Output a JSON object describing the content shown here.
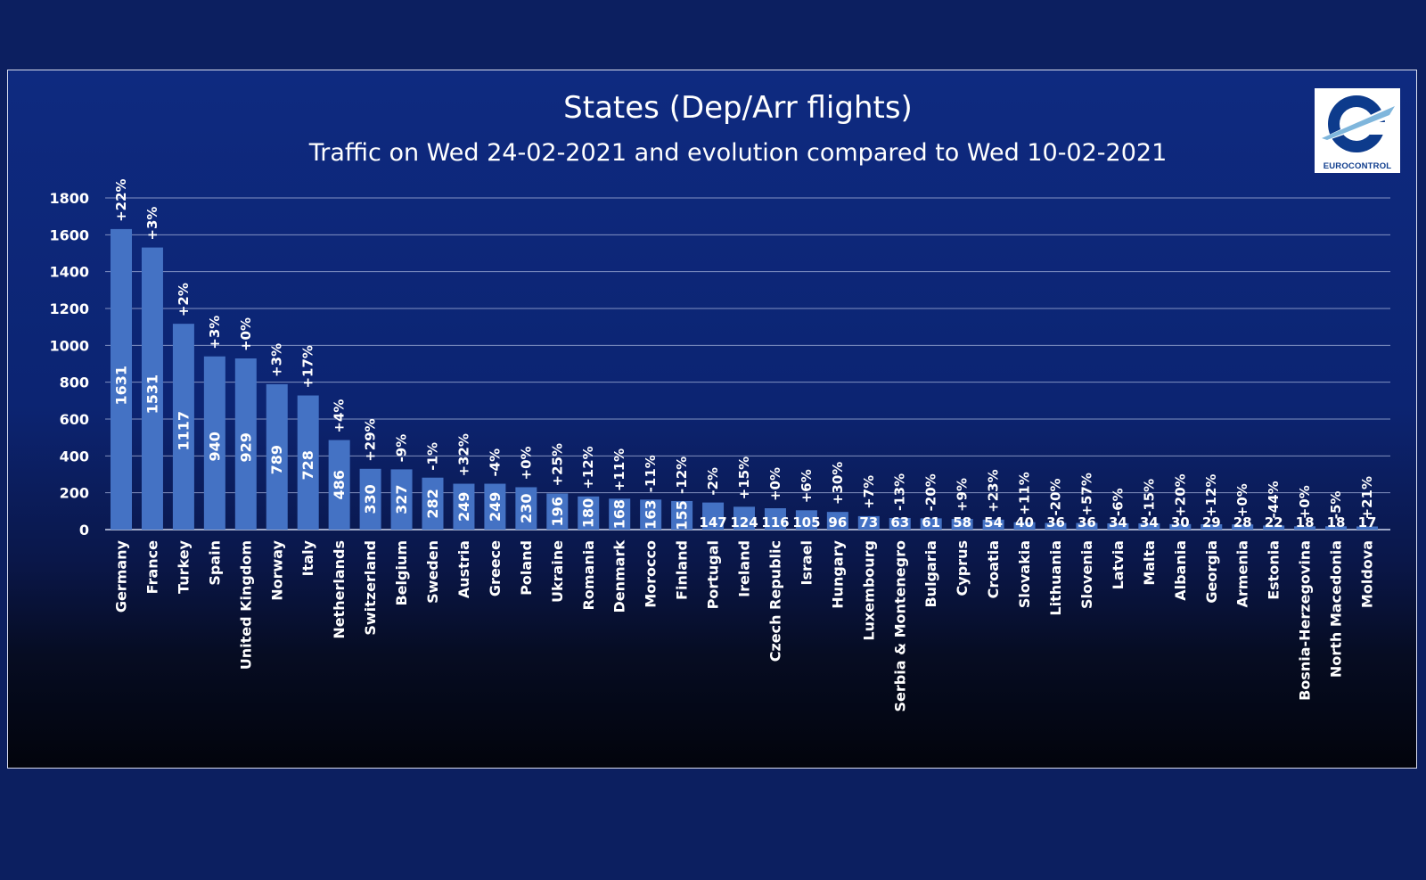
{
  "chart_data": {
    "type": "bar",
    "title": "States (Dep/Arr flights)",
    "subtitle": "Traffic on Wed 24-02-2021 and evolution compared to Wed 10-02-2021",
    "ylim": [
      0,
      1800
    ],
    "yticks": [
      0,
      200,
      400,
      600,
      800,
      1000,
      1200,
      1400,
      1600,
      1800
    ],
    "grid": true,
    "categories": [
      "Germany",
      "France",
      "Turkey",
      "Spain",
      "United Kingdom",
      "Norway",
      "Italy",
      "Netherlands",
      "Switzerland",
      "Belgium",
      "Sweden",
      "Austria",
      "Greece",
      "Poland",
      "Ukraine",
      "Romania",
      "Denmark",
      "Morocco",
      "Finland",
      "Portugal",
      "Ireland",
      "Czech Republic",
      "Israel",
      "Hungary",
      "Luxembourg",
      "Serbia & Montenegro",
      "Bulgaria",
      "Cyprus",
      "Croatia",
      "Slovakia",
      "Lithuania",
      "Slovenia",
      "Latvia",
      "Malta",
      "Albania",
      "Georgia",
      "Armenia",
      "Estonia",
      "Bosnia-Herzegovina",
      "North Macedonia",
      "Moldova"
    ],
    "values": [
      1631,
      1531,
      1117,
      940,
      929,
      789,
      728,
      486,
      330,
      327,
      282,
      249,
      249,
      230,
      196,
      180,
      168,
      163,
      155,
      147,
      124,
      116,
      105,
      96,
      73,
      63,
      61,
      58,
      54,
      40,
      36,
      36,
      34,
      34,
      30,
      29,
      28,
      22,
      18,
      18,
      17
    ],
    "evolution_labels": [
      "+22%",
      "+3%",
      "+2%",
      "+3%",
      "+0%",
      "+3%",
      "+17%",
      "+4%",
      "+29%",
      "-9%",
      "-1%",
      "+32%",
      "-4%",
      "+0%",
      "+25%",
      "+12%",
      "+11%",
      "-11%",
      "-12%",
      "-2%",
      "+15%",
      "+0%",
      "+6%",
      "+30%",
      "+7%",
      "-13%",
      "-20%",
      "+9%",
      "+23%",
      "+11%",
      "-20%",
      "+57%",
      "-6%",
      "-15%",
      "+20%",
      "+12%",
      "+0%",
      "-44%",
      "+0%",
      "-5%",
      "+21%"
    ],
    "bar_color": "#4472c4"
  },
  "logo": {
    "text": "EUROCONTROL"
  },
  "colors": {
    "background": "#0c1f60",
    "text": "#ffffff",
    "grid": "#a9b6de"
  }
}
